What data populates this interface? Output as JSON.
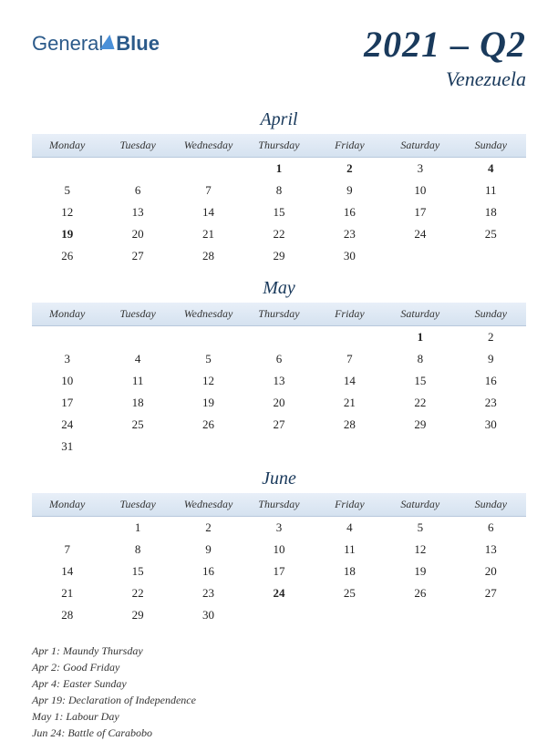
{
  "logo": {
    "text1": "General",
    "text2": "Blue"
  },
  "period": "2021 – Q2",
  "country": "Venezuela",
  "weekdays": [
    "Monday",
    "Tuesday",
    "Wednesday",
    "Thursday",
    "Friday",
    "Saturday",
    "Sunday"
  ],
  "months": [
    {
      "name": "April",
      "weeks": [
        [
          "",
          "",
          "",
          "1",
          "2",
          "3",
          "4"
        ],
        [
          "5",
          "6",
          "7",
          "8",
          "9",
          "10",
          "11"
        ],
        [
          "12",
          "13",
          "14",
          "15",
          "16",
          "17",
          "18"
        ],
        [
          "19",
          "20",
          "21",
          "22",
          "23",
          "24",
          "25"
        ],
        [
          "26",
          "27",
          "28",
          "29",
          "30",
          "",
          ""
        ]
      ],
      "holidays": [
        "1",
        "2",
        "4",
        "19"
      ]
    },
    {
      "name": "May",
      "weeks": [
        [
          "",
          "",
          "",
          "",
          "",
          "1",
          "2"
        ],
        [
          "3",
          "4",
          "5",
          "6",
          "7",
          "8",
          "9"
        ],
        [
          "10",
          "11",
          "12",
          "13",
          "14",
          "15",
          "16"
        ],
        [
          "17",
          "18",
          "19",
          "20",
          "21",
          "22",
          "23"
        ],
        [
          "24",
          "25",
          "26",
          "27",
          "28",
          "29",
          "30"
        ],
        [
          "31",
          "",
          "",
          "",
          "",
          "",
          ""
        ]
      ],
      "holidays": [
        "1"
      ]
    },
    {
      "name": "June",
      "weeks": [
        [
          "",
          "1",
          "2",
          "3",
          "4",
          "5",
          "6"
        ],
        [
          "7",
          "8",
          "9",
          "10",
          "11",
          "12",
          "13"
        ],
        [
          "14",
          "15",
          "16",
          "17",
          "18",
          "19",
          "20"
        ],
        [
          "21",
          "22",
          "23",
          "24",
          "25",
          "26",
          "27"
        ],
        [
          "28",
          "29",
          "30",
          "",
          "",
          "",
          ""
        ]
      ],
      "holidays": [
        "24"
      ]
    }
  ],
  "holiday_list": [
    "Apr 1: Maundy Thursday",
    "Apr 2: Good Friday",
    "Apr 4: Easter Sunday",
    "Apr 19: Declaration of Independence",
    "May 1: Labour Day",
    "Jun 24: Battle of Carabobo"
  ],
  "colors": {
    "header_bg_top": "#e8eff8",
    "header_bg_bottom": "#d5e2f0",
    "title_color": "#1a3a5c",
    "holiday_color": "#c91818",
    "text_color": "#222"
  }
}
